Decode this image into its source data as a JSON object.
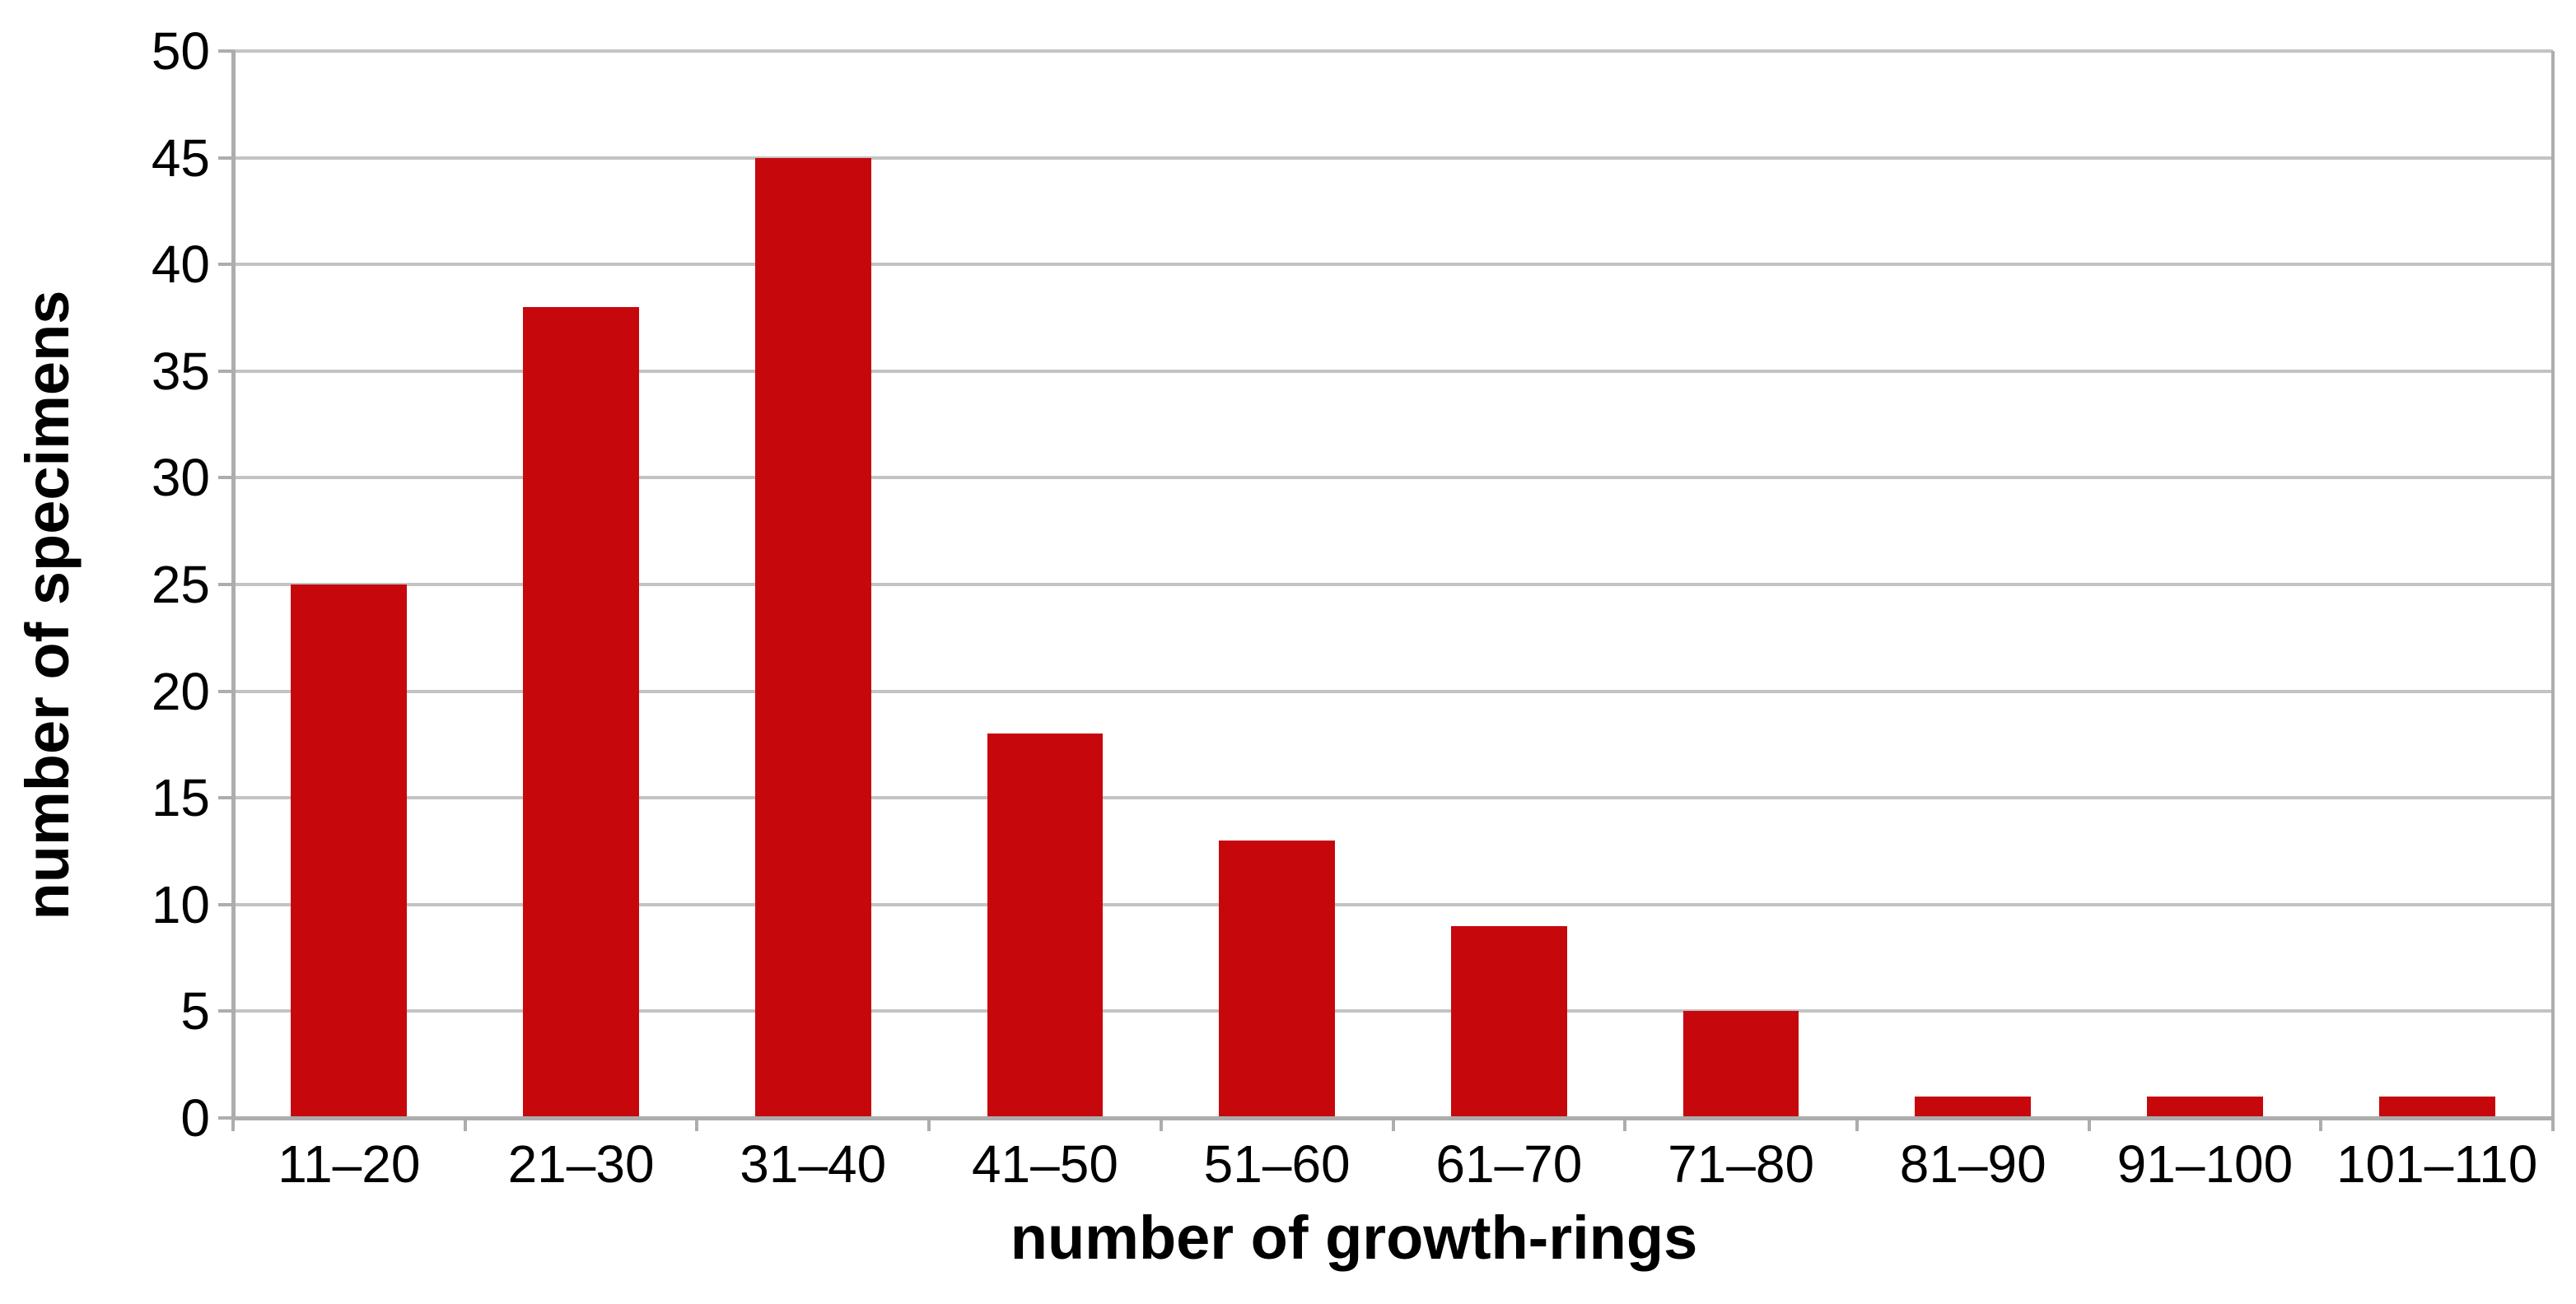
{
  "chart_data": {
    "type": "bar",
    "categories": [
      "11–20",
      "21–30",
      "31–40",
      "41–50",
      "51–60",
      "61–70",
      "71–80",
      "81–90",
      "91–100",
      "101–110"
    ],
    "values": [
      25,
      38,
      45,
      18,
      13,
      9,
      5,
      1,
      1,
      1
    ],
    "xlabel": "number of growth-rings",
    "ylabel": "number of specimens",
    "yticks": [
      0,
      5,
      10,
      15,
      20,
      25,
      30,
      35,
      40,
      45,
      50
    ],
    "ylim": [
      0,
      50
    ],
    "grid": "horizontal",
    "legend": "none",
    "bar_color": "#c6080d",
    "grid_color": "#c3c3c3",
    "axis_color": "#adadad",
    "text_color": "#000000",
    "background_color": "#ffffff"
  }
}
